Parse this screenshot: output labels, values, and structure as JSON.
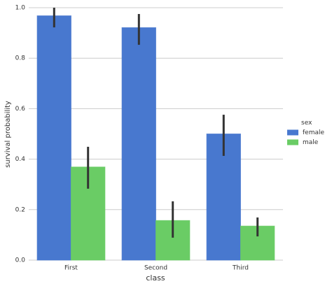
{
  "chart_data": {
    "type": "bar",
    "xlabel": "class",
    "ylabel": "survival probability",
    "categories": [
      "First",
      "Second",
      "Third"
    ],
    "series": [
      {
        "name": "female",
        "color": "#4878cf",
        "values": [
          0.968,
          0.921,
          0.5
        ],
        "ci_low": [
          0.922,
          0.853,
          0.413
        ],
        "ci_high": [
          1.0,
          0.975,
          0.576
        ]
      },
      {
        "name": "male",
        "color": "#6acc65",
        "values": [
          0.369,
          0.157,
          0.135
        ],
        "ci_low": [
          0.283,
          0.089,
          0.094
        ],
        "ci_high": [
          0.449,
          0.233,
          0.169
        ]
      }
    ],
    "ylim": [
      0,
      1.0
    ],
    "yticks": [
      {
        "value": 0,
        "label": "0.0"
      },
      0.2,
      0.4,
      0.6,
      0.8,
      {
        "value": 1.0,
        "label": "1.0"
      }
    ],
    "grid": true,
    "legend_title": "sex",
    "legend": "center right"
  }
}
